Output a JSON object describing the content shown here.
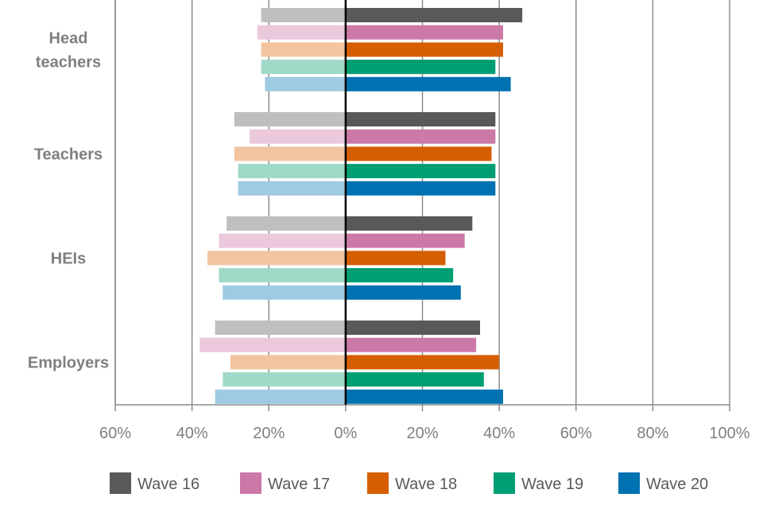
{
  "chart_data": {
    "type": "bar",
    "orientation": "horizontal-diverging",
    "categories": [
      "Head teachers",
      "Teachers",
      "HEIs",
      "Employers"
    ],
    "category_lines": [
      [
        "Head",
        "teachers"
      ],
      [
        "Teachers"
      ],
      [
        "HEIs"
      ],
      [
        "Employers"
      ]
    ],
    "xlim": [
      -60,
      100
    ],
    "xticks": [
      -60,
      -40,
      -20,
      0,
      20,
      40,
      60,
      80,
      100
    ],
    "xtick_labels": [
      "60%",
      "40%",
      "20%",
      "0%",
      "20%",
      "40%",
      "60%",
      "80%",
      "100%"
    ],
    "grid": "vertical",
    "legend_position": "bottom",
    "series": [
      {
        "name": "Wave 16",
        "color": "#595959",
        "light_color": "#bfbfbf",
        "negative": [
          22,
          29,
          31,
          34
        ],
        "positive": [
          46,
          39,
          33,
          35
        ]
      },
      {
        "name": "Wave 17",
        "color": "#cc79a7",
        "light_color": "#ebc8dc",
        "negative": [
          23,
          25,
          33,
          38
        ],
        "positive": [
          41,
          39,
          31,
          34
        ]
      },
      {
        "name": "Wave 18",
        "color": "#d55e00",
        "light_color": "#f2c4a0",
        "negative": [
          22,
          29,
          36,
          30
        ],
        "positive": [
          41,
          38,
          26,
          40
        ]
      },
      {
        "name": "Wave 19",
        "color": "#009e73",
        "light_color": "#9fd9c7",
        "negative": [
          22,
          28,
          33,
          32
        ],
        "positive": [
          39,
          39,
          28,
          36
        ]
      },
      {
        "name": "Wave 20",
        "color": "#0072b2",
        "light_color": "#9ecae3",
        "negative": [
          21,
          28,
          32,
          34
        ],
        "positive": [
          43,
          39,
          30,
          41
        ]
      }
    ]
  }
}
